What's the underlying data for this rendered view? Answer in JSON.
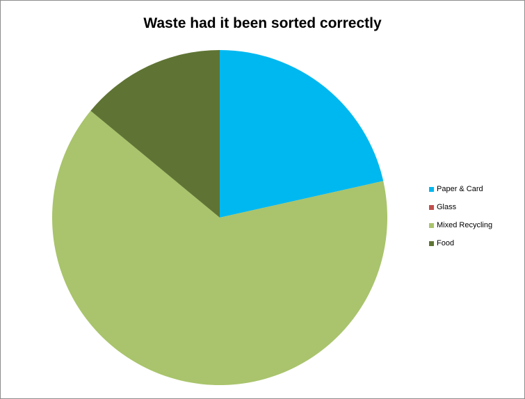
{
  "chart_data": {
    "type": "pie",
    "title": "Waste had it been sorted correctly",
    "categories": [
      "Paper & Card",
      "Glass",
      "Mixed Recycling",
      "Food"
    ],
    "values": [
      21.5,
      0,
      64.5,
      14.0
    ],
    "colors": [
      "#00b8f0",
      "#c0504d",
      "#a9c46c",
      "#5f7434"
    ],
    "start_angle_deg": 0,
    "direction": "clockwise",
    "legend_position": "right"
  }
}
